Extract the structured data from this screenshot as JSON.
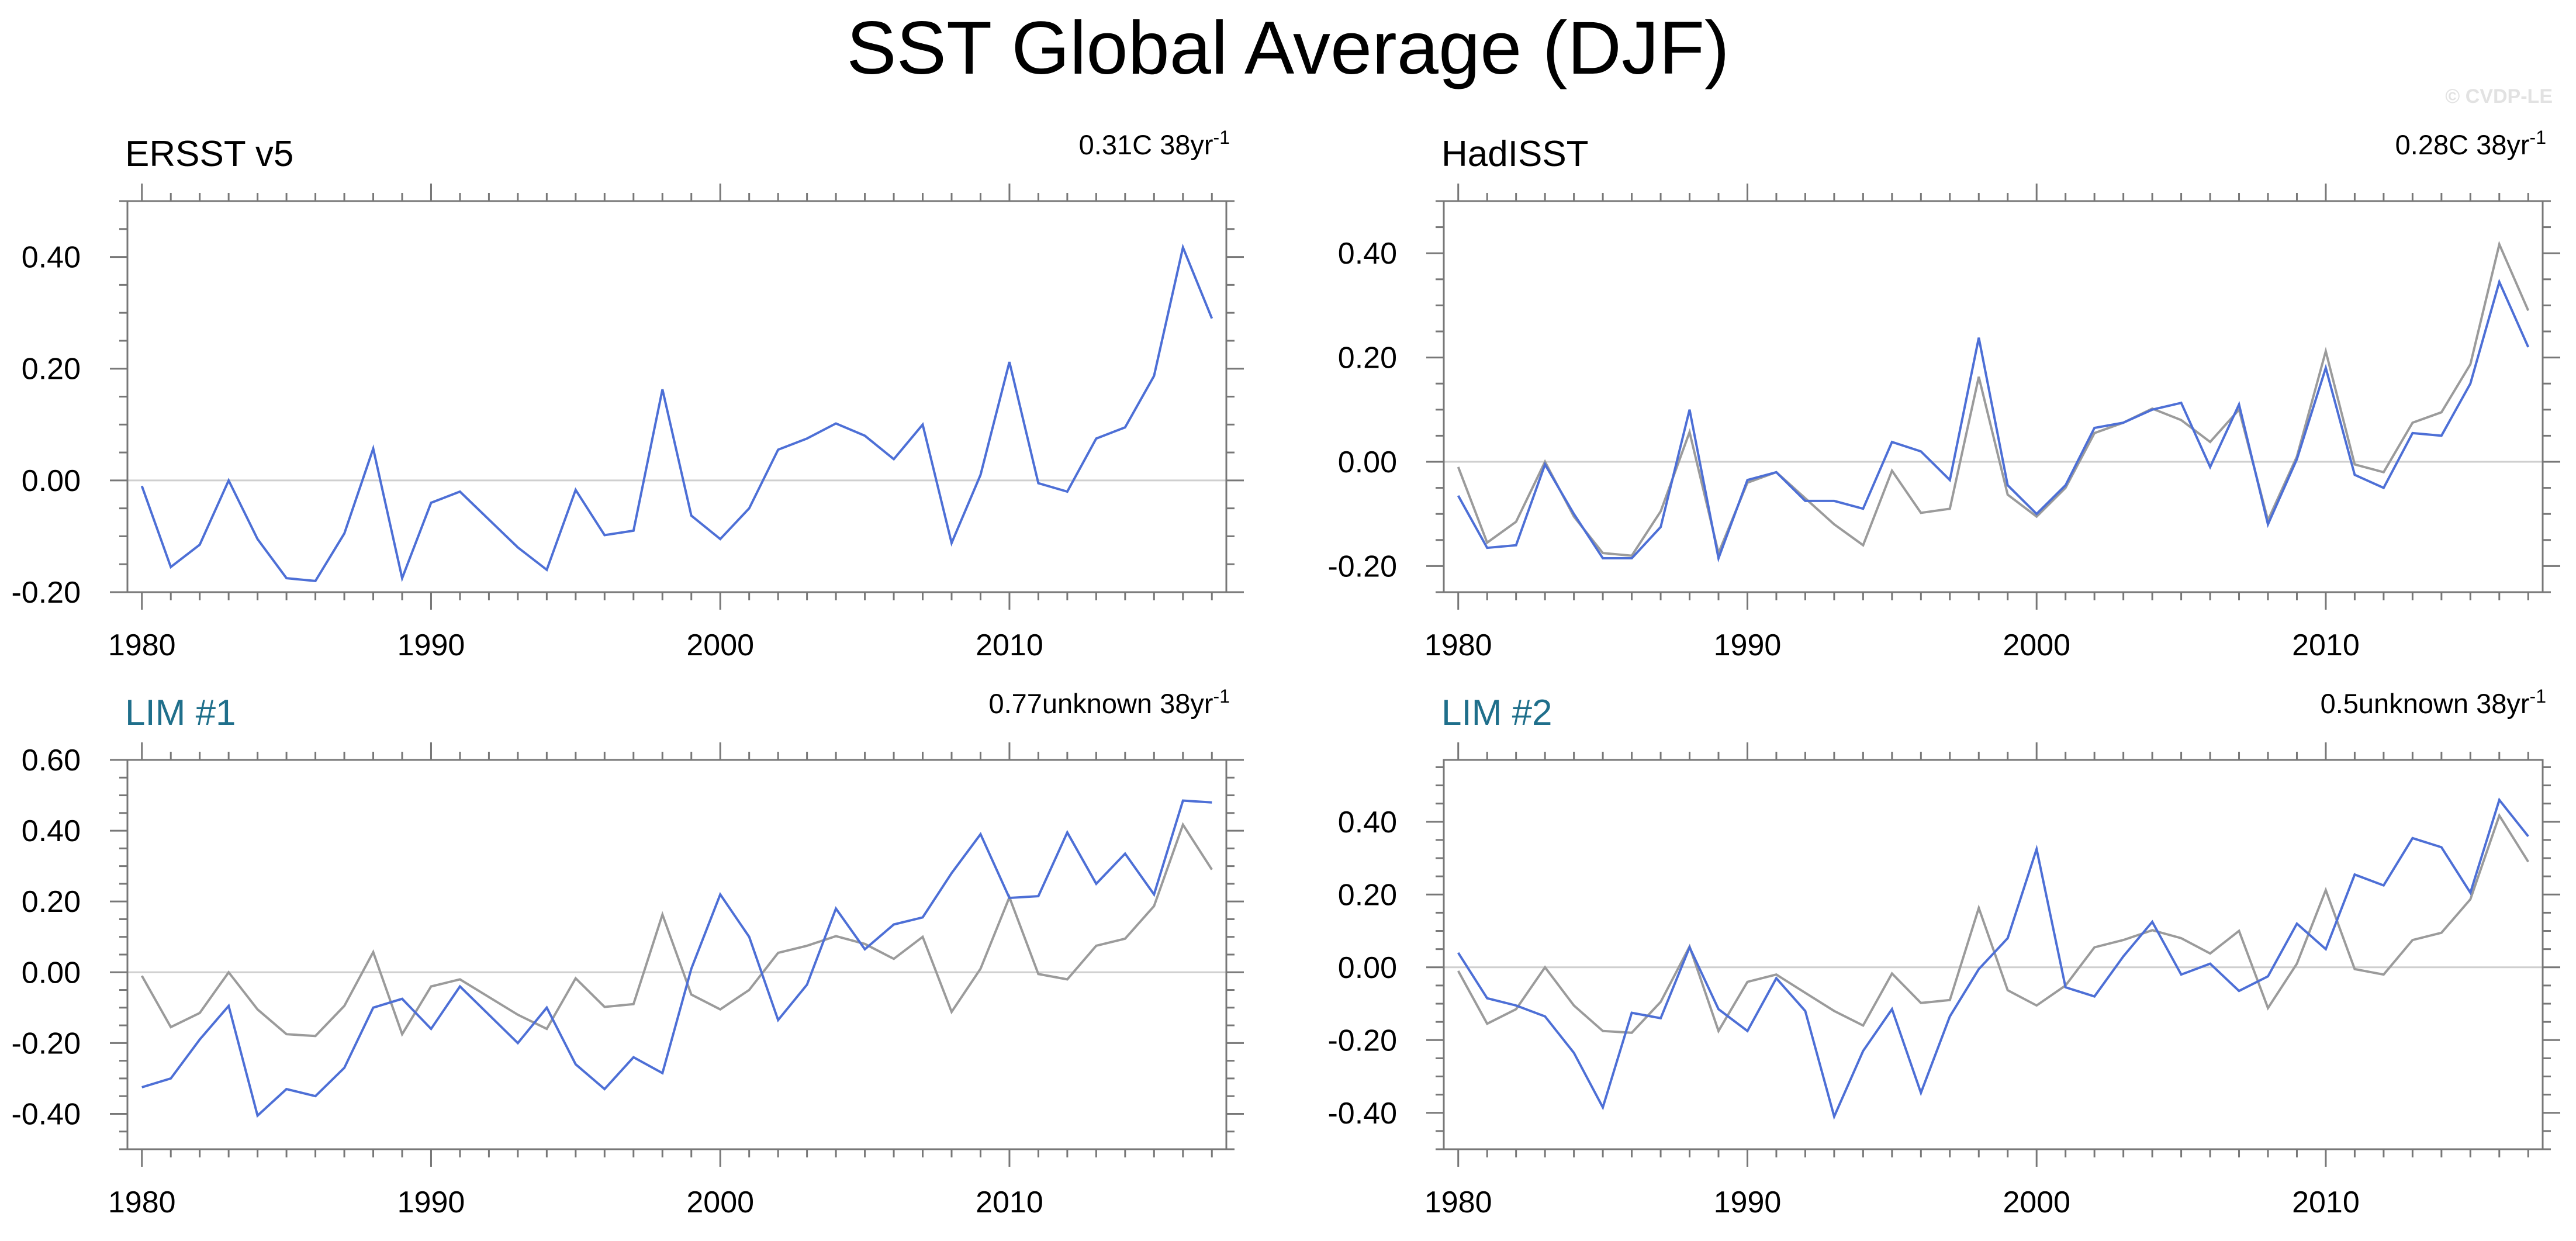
{
  "title": "SST Global Average (DJF)",
  "watermark": "© CVDP-LE",
  "colors": {
    "main_series": "#4d6fd6",
    "observed_series": "#9b9b9b",
    "lim_title": "#1f6f8b",
    "obs_title": "#000000",
    "zero_line": "#cfcfcf"
  },
  "chart_data": [
    {
      "type": "line",
      "title": "ERSST v5",
      "title_style": "obs",
      "trend_value": "0.31C 38yr",
      "trend_exponent": "-1",
      "x": [
        1980,
        1981,
        1982,
        1983,
        1984,
        1985,
        1986,
        1987,
        1988,
        1989,
        1990,
        1991,
        1992,
        1993,
        1994,
        1995,
        1996,
        1997,
        1998,
        1999,
        2000,
        2001,
        2002,
        2003,
        2004,
        2005,
        2006,
        2007,
        2008,
        2009,
        2010,
        2011,
        2012,
        2013,
        2014,
        2015,
        2016,
        2017
      ],
      "xticks": [
        1980,
        1990,
        2000,
        2010
      ],
      "xtick_labels": [
        "1980",
        "1990",
        "2000",
        "2010"
      ],
      "xlim": [
        1979.5,
        2017.5
      ],
      "ylim": [
        -0.2,
        0.5
      ],
      "yticks": [
        -0.2,
        0,
        0.2,
        0.4
      ],
      "ytick_labels": [
        "-0.20",
        "0.00",
        "0.20",
        "0.40"
      ],
      "grid": false,
      "zero_line": true,
      "series": [
        {
          "role": "main",
          "values": [
            -0.01,
            -0.155,
            -0.115,
            0.0,
            -0.105,
            -0.175,
            -0.18,
            -0.095,
            0.057,
            -0.175,
            -0.04,
            -0.02,
            -0.07,
            -0.12,
            -0.16,
            -0.017,
            -0.098,
            -0.09,
            0.163,
            -0.063,
            -0.105,
            -0.05,
            0.055,
            0.075,
            0.102,
            0.08,
            0.038,
            0.1,
            -0.112,
            0.01,
            0.212,
            -0.005,
            -0.02,
            0.075,
            0.095,
            0.187,
            0.417,
            0.29
          ]
        }
      ]
    },
    {
      "type": "line",
      "title": "HadISST",
      "title_style": "obs",
      "trend_value": "0.28C 38yr",
      "trend_exponent": "-1",
      "x": [
        1980,
        1981,
        1982,
        1983,
        1984,
        1985,
        1986,
        1987,
        1988,
        1989,
        1990,
        1991,
        1992,
        1993,
        1994,
        1995,
        1996,
        1997,
        1998,
        1999,
        2000,
        2001,
        2002,
        2003,
        2004,
        2005,
        2006,
        2007,
        2008,
        2009,
        2010,
        2011,
        2012,
        2013,
        2014,
        2015,
        2016,
        2017
      ],
      "xticks": [
        1980,
        1990,
        2000,
        2010
      ],
      "xtick_labels": [
        "1980",
        "1990",
        "2000",
        "2010"
      ],
      "xlim": [
        1979.5,
        2017.5
      ],
      "ylim": [
        -0.25,
        0.5
      ],
      "yticks": [
        -0.2,
        0,
        0.2,
        0.4
      ],
      "ytick_labels": [
        "-0.20",
        "0.00",
        "0.20",
        "0.40"
      ],
      "grid": false,
      "zero_line": true,
      "series": [
        {
          "role": "observed",
          "values": [
            -0.01,
            -0.155,
            -0.115,
            0.0,
            -0.105,
            -0.175,
            -0.18,
            -0.095,
            0.057,
            -0.175,
            -0.04,
            -0.02,
            -0.07,
            -0.12,
            -0.16,
            -0.017,
            -0.098,
            -0.09,
            0.163,
            -0.063,
            -0.105,
            -0.05,
            0.055,
            0.075,
            0.102,
            0.08,
            0.038,
            0.1,
            -0.112,
            0.01,
            0.212,
            -0.005,
            -0.02,
            0.075,
            0.095,
            0.187,
            0.417,
            0.29
          ]
        },
        {
          "role": "main",
          "values": [
            -0.065,
            -0.165,
            -0.16,
            -0.005,
            -0.1,
            -0.185,
            -0.185,
            -0.125,
            0.1,
            -0.185,
            -0.035,
            -0.02,
            -0.075,
            -0.075,
            -0.09,
            0.038,
            0.02,
            -0.035,
            0.238,
            -0.045,
            -0.1,
            -0.045,
            0.065,
            0.075,
            0.1,
            0.113,
            -0.01,
            0.11,
            -0.12,
            0.005,
            0.18,
            -0.025,
            -0.05,
            0.055,
            0.05,
            0.15,
            0.345,
            0.22
          ]
        }
      ]
    },
    {
      "type": "line",
      "title": "LIM #1",
      "title_style": "lim",
      "trend_value": "0.77unknown 38yr",
      "trend_exponent": "-1",
      "x": [
        1980,
        1981,
        1982,
        1983,
        1984,
        1985,
        1986,
        1987,
        1988,
        1989,
        1990,
        1991,
        1992,
        1993,
        1994,
        1995,
        1996,
        1997,
        1998,
        1999,
        2000,
        2001,
        2002,
        2003,
        2004,
        2005,
        2006,
        2007,
        2008,
        2009,
        2010,
        2011,
        2012,
        2013,
        2014,
        2015,
        2016,
        2017
      ],
      "xticks": [
        1980,
        1990,
        2000,
        2010
      ],
      "xtick_labels": [
        "1980",
        "1990",
        "2000",
        "2010"
      ],
      "xlim": [
        1979.5,
        2017.5
      ],
      "ylim": [
        -0.5,
        0.6
      ],
      "yticks": [
        -0.4,
        -0.2,
        0,
        0.2,
        0.4,
        0.6
      ],
      "ytick_labels": [
        "-0.40",
        "-0.20",
        "0.00",
        "0.20",
        "0.40",
        "0.60"
      ],
      "grid": false,
      "zero_line": true,
      "series": [
        {
          "role": "observed",
          "values": [
            -0.01,
            -0.155,
            -0.115,
            0.0,
            -0.105,
            -0.175,
            -0.18,
            -0.095,
            0.057,
            -0.175,
            -0.04,
            -0.02,
            -0.07,
            -0.12,
            -0.16,
            -0.017,
            -0.098,
            -0.09,
            0.163,
            -0.063,
            -0.105,
            -0.05,
            0.055,
            0.075,
            0.102,
            0.08,
            0.038,
            0.1,
            -0.112,
            0.01,
            0.212,
            -0.005,
            -0.02,
            0.075,
            0.095,
            0.187,
            0.417,
            0.29
          ]
        },
        {
          "role": "main",
          "values": [
            -0.325,
            -0.3,
            -0.19,
            -0.095,
            -0.405,
            -0.33,
            -0.35,
            -0.27,
            -0.1,
            -0.075,
            -0.16,
            -0.04,
            -0.12,
            -0.2,
            -0.1,
            -0.26,
            -0.33,
            -0.24,
            -0.285,
            0.01,
            0.22,
            0.1,
            -0.135,
            -0.035,
            0.18,
            0.065,
            0.135,
            0.155,
            0.28,
            0.39,
            0.21,
            0.215,
            0.395,
            0.25,
            0.335,
            0.22,
            0.485,
            0.48
          ]
        }
      ]
    },
    {
      "type": "line",
      "title": "LIM #2",
      "title_style": "lim",
      "trend_value": "0.5unknown 38yr",
      "trend_exponent": "-1",
      "x": [
        1980,
        1981,
        1982,
        1983,
        1984,
        1985,
        1986,
        1987,
        1988,
        1989,
        1990,
        1991,
        1992,
        1993,
        1994,
        1995,
        1996,
        1997,
        1998,
        1999,
        2000,
        2001,
        2002,
        2003,
        2004,
        2005,
        2006,
        2007,
        2008,
        2009,
        2010,
        2011,
        2012,
        2013,
        2014,
        2015,
        2016,
        2017
      ],
      "xticks": [
        1980,
        1990,
        2000,
        2010
      ],
      "xtick_labels": [
        "1980",
        "1990",
        "2000",
        "2010"
      ],
      "xlim": [
        1979.5,
        2017.5
      ],
      "ylim": [
        -0.5,
        0.57
      ],
      "yticks": [
        -0.4,
        -0.2,
        0,
        0.2,
        0.4
      ],
      "ytick_labels": [
        "-0.40",
        "-0.20",
        "0.00",
        "0.20",
        "0.40"
      ],
      "grid": false,
      "zero_line": true,
      "series": [
        {
          "role": "observed",
          "values": [
            -0.01,
            -0.155,
            -0.115,
            0.0,
            -0.105,
            -0.175,
            -0.18,
            -0.095,
            0.057,
            -0.175,
            -0.04,
            -0.02,
            -0.07,
            -0.12,
            -0.16,
            -0.017,
            -0.098,
            -0.09,
            0.163,
            -0.063,
            -0.105,
            -0.05,
            0.055,
            0.075,
            0.102,
            0.08,
            0.038,
            0.1,
            -0.112,
            0.01,
            0.212,
            -0.005,
            -0.02,
            0.075,
            0.095,
            0.187,
            0.417,
            0.29
          ]
        },
        {
          "role": "main",
          "values": [
            0.04,
            -0.085,
            -0.105,
            -0.135,
            -0.235,
            -0.385,
            -0.125,
            -0.14,
            0.055,
            -0.115,
            -0.175,
            -0.03,
            -0.12,
            -0.41,
            -0.23,
            -0.115,
            -0.345,
            -0.135,
            -0.005,
            0.08,
            0.325,
            -0.055,
            -0.08,
            0.03,
            0.125,
            -0.02,
            0.01,
            -0.065,
            -0.025,
            0.12,
            0.05,
            0.255,
            0.225,
            0.355,
            0.33,
            0.205,
            0.46,
            0.36
          ]
        }
      ]
    }
  ]
}
